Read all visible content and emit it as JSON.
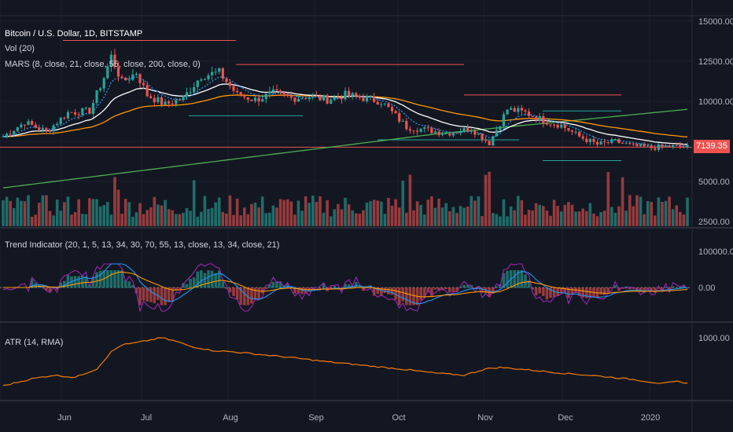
{
  "legend": {
    "title": "Bitcoin / U.S. Dollar, 1D, BITSTAMP",
    "vol": "Vol (20)",
    "mars": "MARS (8, close, 21, close, 55, close, 200, close, 0)",
    "trend": "Trend Indicator (20, 1, 5, 13, 34, 30, 70, 55, 13, close, 13, 34, close, 21)",
    "atr": "ATR (14, RMA)"
  },
  "price_badge": "7139.35",
  "colors": {
    "bg": "#131722",
    "up": "#26a69a",
    "down": "#ef5350",
    "ema8": "#2196f3",
    "ema21": "#ffffff",
    "ema55": "#ff9800",
    "ma200": "#4caf50",
    "atr": "#f57c00",
    "trend": "#9c27b0"
  },
  "chart_data": [
    {
      "type": "candlestick",
      "title": "Bitcoin / U.S. Dollar, 1D, BITSTAMP",
      "x_ticks": [
        "Jun",
        "Jul",
        "Aug",
        "Sep",
        "Oct",
        "Nov",
        "Dec",
        "2020"
      ],
      "y_ticks": [
        "15000.00",
        "12500.00",
        "10000.00",
        "7500.00",
        "5000.00",
        "2500.00"
      ],
      "ylim": [
        2500,
        15000
      ],
      "last_price": 7139.35,
      "close_path": [
        [
          0,
          7800
        ],
        [
          6,
          8700
        ],
        [
          12,
          8100
        ],
        [
          18,
          9300
        ],
        [
          24,
          9400
        ],
        [
          28,
          11500
        ],
        [
          30,
          12800
        ],
        [
          33,
          11200
        ],
        [
          37,
          11800
        ],
        [
          40,
          10400
        ],
        [
          45,
          9800
        ],
        [
          50,
          10200
        ],
        [
          55,
          11600
        ],
        [
          60,
          11800
        ],
        [
          65,
          10400
        ],
        [
          70,
          10100
        ],
        [
          75,
          10500
        ],
        [
          80,
          10200
        ],
        [
          85,
          10300
        ],
        [
          90,
          10100
        ],
        [
          95,
          10400
        ],
        [
          100,
          10200
        ],
        [
          105,
          10000
        ],
        [
          112,
          8400
        ],
        [
          118,
          8200
        ],
        [
          123,
          8000
        ],
        [
          130,
          8300
        ],
        [
          135,
          7400
        ],
        [
          140,
          9500
        ],
        [
          145,
          9300
        ],
        [
          150,
          8800
        ],
        [
          155,
          8500
        ],
        [
          160,
          7800
        ],
        [
          165,
          7300
        ],
        [
          170,
          7500
        ],
        [
          175,
          7200
        ],
        [
          180,
          7100
        ],
        [
          185,
          7200
        ],
        [
          190,
          7140
        ]
      ],
      "series": [
        {
          "name": "Vol (20)",
          "type": "bar"
        },
        {
          "name": "MARS (8, close, 21, close, 55, close, 200, close, 0)",
          "type": "line"
        }
      ]
    },
    {
      "type": "line",
      "title": "Trend Indicator (20, 1, 5, 13, 34, 30, 70, 55, 13, close, 13, 34, close, 21)",
      "y_ticks": [
        "100000.00",
        "0.00"
      ],
      "ylim": [
        -100000,
        100000
      ]
    },
    {
      "type": "line",
      "title": "ATR (14, RMA)",
      "y_ticks": [
        "1000.00"
      ],
      "ylim": [
        200,
        1200
      ],
      "series": [
        {
          "name": "ATR (14, RMA)",
          "values": [
            [
              0,
              320
            ],
            [
              8,
              420
            ],
            [
              14,
              470
            ],
            [
              20,
              440
            ],
            [
              26,
              560
            ],
            [
              30,
              800
            ],
            [
              33,
              900
            ],
            [
              36,
              920
            ],
            [
              40,
              960
            ],
            [
              44,
              1000
            ],
            [
              48,
              950
            ],
            [
              52,
              880
            ],
            [
              58,
              820
            ],
            [
              64,
              800
            ],
            [
              70,
              770
            ],
            [
              80,
              720
            ],
            [
              90,
              660
            ],
            [
              100,
              610
            ],
            [
              110,
              560
            ],
            [
              120,
              500
            ],
            [
              128,
              470
            ],
            [
              134,
              560
            ],
            [
              138,
              580
            ],
            [
              145,
              550
            ],
            [
              155,
              500
            ],
            [
              165,
              460
            ],
            [
              175,
              410
            ],
            [
              183,
              350
            ],
            [
              187,
              380
            ],
            [
              190,
              360
            ]
          ]
        }
      ]
    }
  ]
}
